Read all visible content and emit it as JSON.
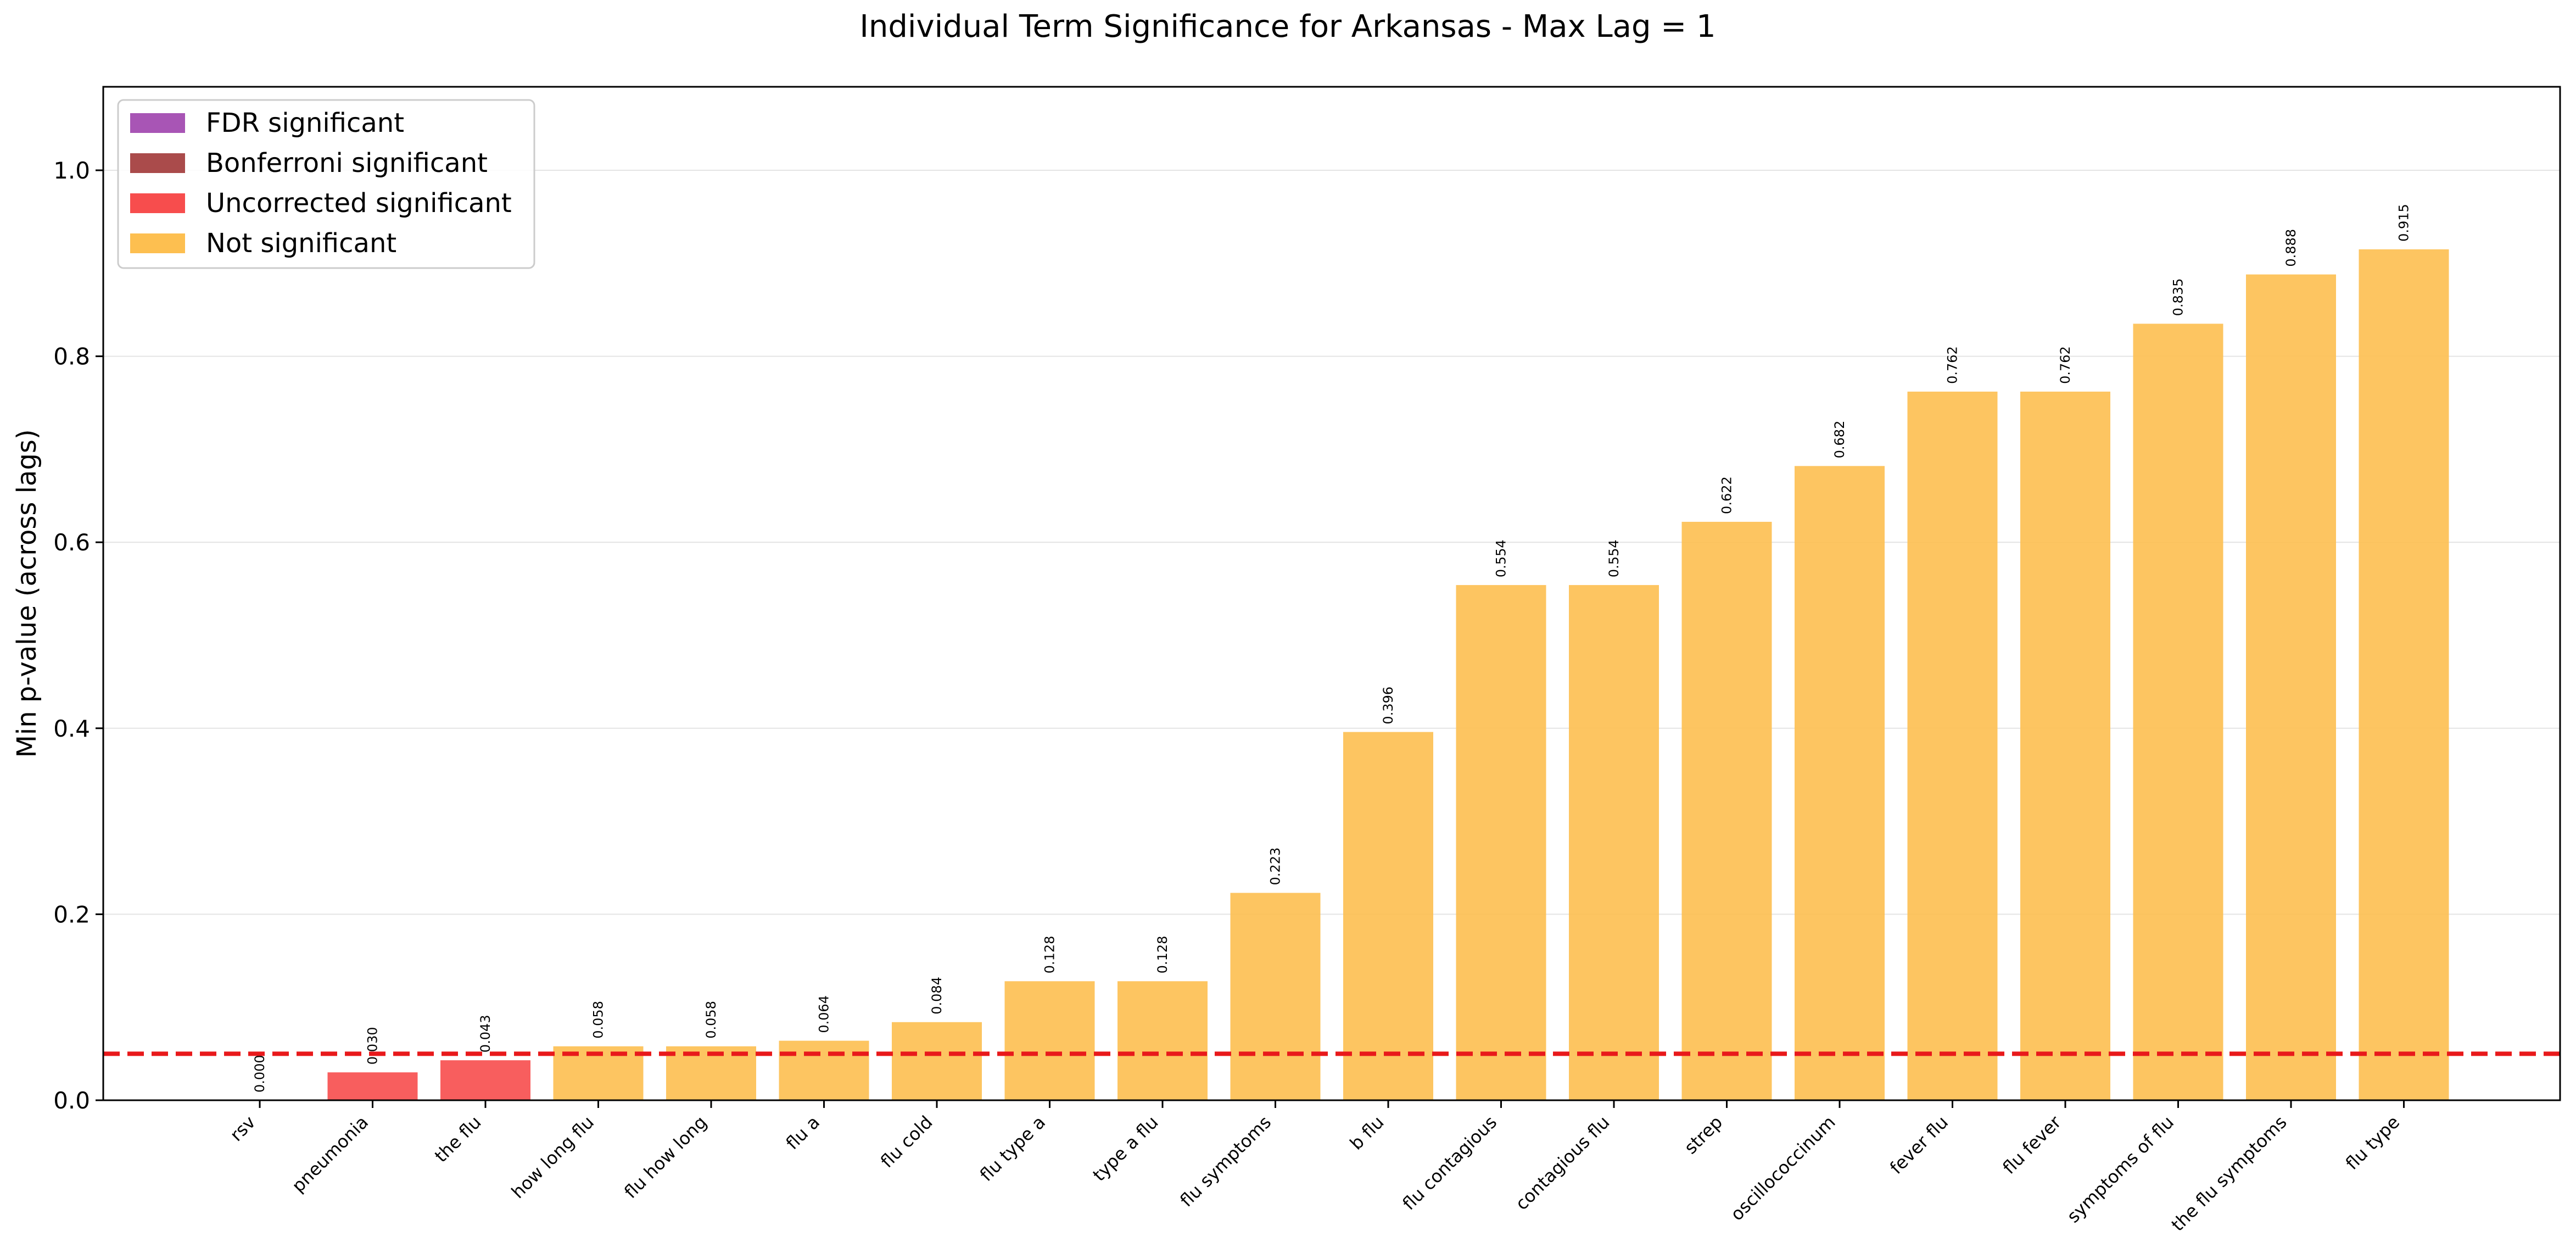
{
  "chart_data": {
    "type": "bar",
    "title": "Individual Term Significance for Arkansas - Max Lag = 1",
    "xlabel": "",
    "ylabel": "Min p-value (across lags)",
    "ylim": [
      0,
      1.0
    ],
    "yticks": [
      "0.0",
      "0.2",
      "0.4",
      "0.6",
      "0.8",
      "1.0"
    ],
    "grid": "y",
    "legend_position": "top-left",
    "threshold": 0.05,
    "categories": [
      "rsv",
      "pneumonia",
      "the flu",
      "how long flu",
      "flu how long",
      "flu a",
      "flu cold",
      "flu type a",
      "type a flu",
      "flu symptoms",
      "b flu",
      "flu contagious",
      "contagious flu",
      "strep",
      "oscillococcinum",
      "fever flu",
      "flu fever",
      "symptoms of flu",
      "the flu symptoms",
      "flu type"
    ],
    "values": [
      0.0,
      0.03,
      0.043,
      0.058,
      0.058,
      0.064,
      0.084,
      0.128,
      0.128,
      0.223,
      0.396,
      0.554,
      0.554,
      0.622,
      0.682,
      0.762,
      0.762,
      0.835,
      0.888,
      0.915
    ],
    "value_labels": [
      "0.000",
      "0.030",
      "0.043",
      "0.058",
      "0.058",
      "0.064",
      "0.084",
      "0.128",
      "0.128",
      "0.223",
      "0.396",
      "0.554",
      "0.554",
      "0.622",
      "0.682",
      "0.762",
      "0.762",
      "0.835",
      "0.888",
      "0.915"
    ],
    "significance": [
      "uncorrected",
      "uncorrected",
      "uncorrected",
      "not",
      "not",
      "not",
      "not",
      "not",
      "not",
      "not",
      "not",
      "not",
      "not",
      "not",
      "not",
      "not",
      "not",
      "not",
      "not",
      "not"
    ],
    "legend": [
      {
        "key": "fdr",
        "label": "FDR significant",
        "color": "#a855b5"
      },
      {
        "key": "bonferroni",
        "label": "Bonferroni significant",
        "color": "#aa4b4b"
      },
      {
        "key": "uncorrected",
        "label": "Uncorrected significant",
        "color": "#f74d4d"
      },
      {
        "key": "not",
        "label": "Not significant",
        "color": "#fdbf50"
      }
    ],
    "threshold_color": "#e8191b"
  }
}
